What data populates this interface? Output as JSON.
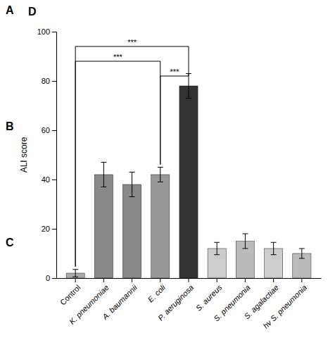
{
  "chart_data": {
    "type": "bar",
    "categories": [
      "Control",
      "K. pneumoniae",
      "A. baumannii",
      "E. coli",
      "P. aeruginosa",
      "S. aureus",
      "S. pneumonia",
      "S. agalactiae",
      "hv S. pneumonia"
    ],
    "values": [
      2,
      42,
      38,
      42,
      78,
      12,
      15,
      12,
      10
    ],
    "errors": [
      1.5,
      5,
      5,
      3,
      5,
      2.5,
      3,
      2.5,
      2
    ],
    "colors": [
      "#aaaaaa",
      "#888888",
      "#888888",
      "#999999",
      "#333333",
      "#cccccc",
      "#bbbbbb",
      "#cccccc",
      "#bbbbbb"
    ],
    "ylabel": "ALI score",
    "ylim": [
      0,
      100
    ],
    "yticks": [
      0,
      20,
      40,
      60,
      80,
      100
    ],
    "grid": false,
    "panel_labels": [
      "A",
      "B",
      "C",
      "D"
    ],
    "significance": [
      {
        "from": "E. coli",
        "to": "P. aeruginosa",
        "y": 82,
        "label": "***"
      },
      {
        "from": "Control",
        "to": "E. coli",
        "y": 88,
        "label": "***"
      },
      {
        "from": "Control",
        "to": "P. aeruginosa",
        "y": 94,
        "label": "***"
      }
    ]
  }
}
